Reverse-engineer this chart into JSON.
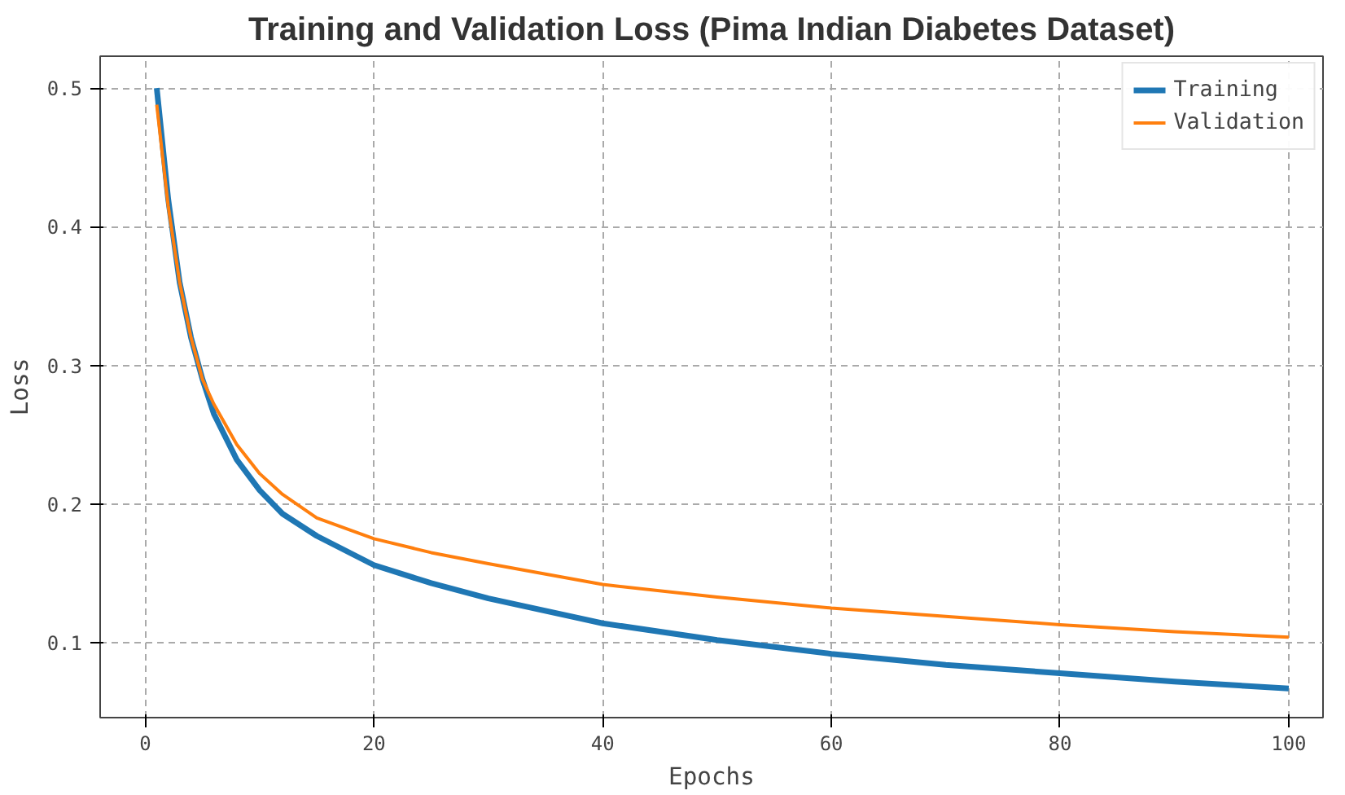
{
  "chart_data": {
    "type": "line",
    "title": "Training and Validation Loss (Pima Indian Diabetes Dataset)",
    "xlabel": "Epochs",
    "ylabel": "Loss",
    "x": [
      1,
      2,
      3,
      4,
      5,
      6,
      8,
      10,
      12,
      15,
      20,
      25,
      30,
      40,
      50,
      60,
      70,
      80,
      90,
      100
    ],
    "series": [
      {
        "name": "Training",
        "color": "#1f77b4",
        "values": [
          0.5,
          0.42,
          0.36,
          0.32,
          0.29,
          0.265,
          0.232,
          0.21,
          0.193,
          0.177,
          0.156,
          0.143,
          0.132,
          0.114,
          0.102,
          0.092,
          0.084,
          0.078,
          0.072,
          0.067
        ]
      },
      {
        "name": "Validation",
        "color": "#ff7f0e",
        "values": [
          0.488,
          0.415,
          0.36,
          0.32,
          0.29,
          0.272,
          0.243,
          0.222,
          0.207,
          0.19,
          0.175,
          0.165,
          0.157,
          0.142,
          0.133,
          0.125,
          0.119,
          0.113,
          0.108,
          0.104
        ]
      }
    ],
    "xlim": [
      -3.95,
      103
    ],
    "ylim": [
      0.046,
      0.523
    ],
    "xticks": [
      0,
      20,
      40,
      60,
      80,
      100
    ],
    "yticks": [
      0.1,
      0.2,
      0.3,
      0.4,
      0.5
    ],
    "grid": true,
    "legend": "top right",
    "line_style": "solid",
    "marker": "none"
  }
}
